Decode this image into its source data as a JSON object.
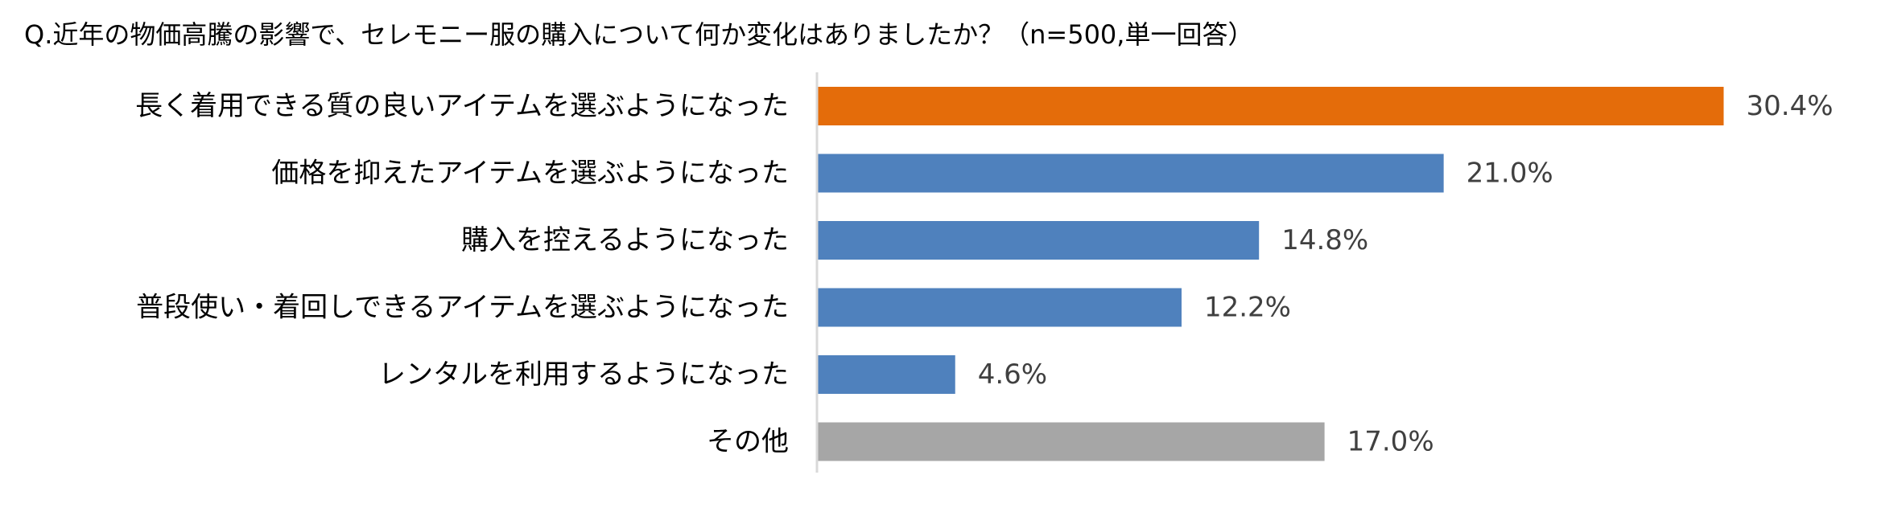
{
  "chart_data": {
    "type": "bar",
    "orientation": "horizontal",
    "title": "Q.近年の物価高騰の影響で、セレモニー服の購入について何か変化はありましたか？（n=500,単一回答）",
    "categories": [
      "長く着用できる質の良いアイテムを選ぶようになった",
      "価格を抑えたアイテムを選ぶようになった",
      "購入を控えるようになった",
      "普段使い・着回しできるアイテムを選ぶようになった",
      "レンタルを利用するようになった",
      "その他"
    ],
    "values": [
      30.4,
      21.0,
      14.8,
      12.2,
      4.6,
      17.0
    ],
    "value_labels": [
      "30.4%",
      "21.0%",
      "14.8%",
      "12.2%",
      "4.6%",
      "17.0%"
    ],
    "bar_colors": [
      "#E46C0A",
      "#4F81BD",
      "#4F81BD",
      "#4F81BD",
      "#4F81BD",
      "#A6A6A6"
    ],
    "axis_color": "#D9D9D9",
    "xlim": [
      0,
      30.4
    ],
    "grid": false,
    "legend": "none"
  }
}
